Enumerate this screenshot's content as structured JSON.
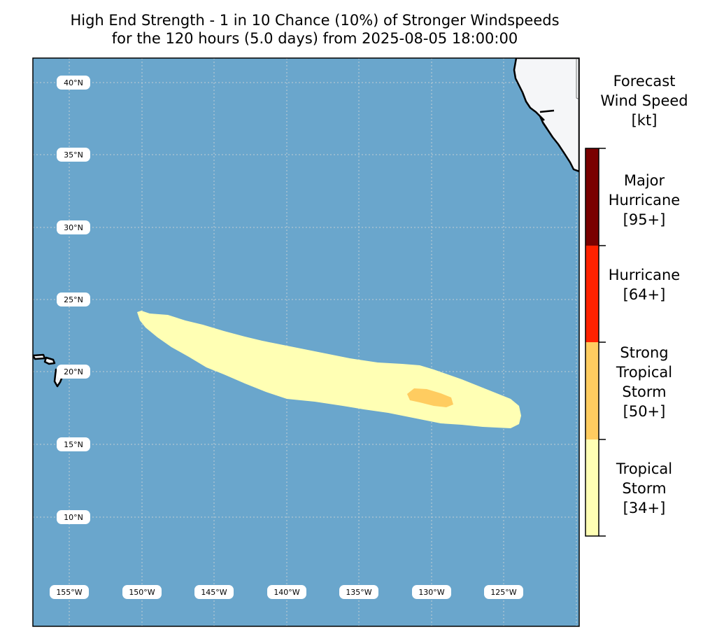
{
  "title": {
    "line1": "High End Strength - 1 in 10 Chance (10%) of Stronger Windspeeds",
    "line2": "for the 120 hours (5.0 days) from 2025-08-05 18:00:00"
  },
  "map": {
    "ocean_color": "#6aa6cc",
    "land_color": "#f5f6f8",
    "lat_labels": [
      "40°N",
      "35°N",
      "30°N",
      "25°N",
      "20°N",
      "15°N",
      "10°N"
    ],
    "lon_labels": [
      "155°W",
      "150°W",
      "145°W",
      "140°W",
      "135°W",
      "130°W",
      "125°W"
    ]
  },
  "legend": {
    "title_lines": [
      "Forecast",
      "Wind Speed",
      "[kt]"
    ],
    "categories": [
      {
        "lines": [
          "Major",
          "Hurricane",
          "[95+]"
        ],
        "color": "#7a0000"
      },
      {
        "lines": [
          "Hurricane",
          "[64+]"
        ],
        "color": "#ff2200"
      },
      {
        "lines": [
          "Strong",
          "Tropical",
          "Storm",
          "[50+]"
        ],
        "color": "#ffcc60"
      },
      {
        "lines": [
          "Tropical",
          "Storm",
          "[34+]"
        ],
        "color": "#ffffb4"
      }
    ]
  },
  "swath": {
    "tropical_storm_color": "#ffffb4",
    "strong_tropical_storm_color": "#ffcc60"
  }
}
